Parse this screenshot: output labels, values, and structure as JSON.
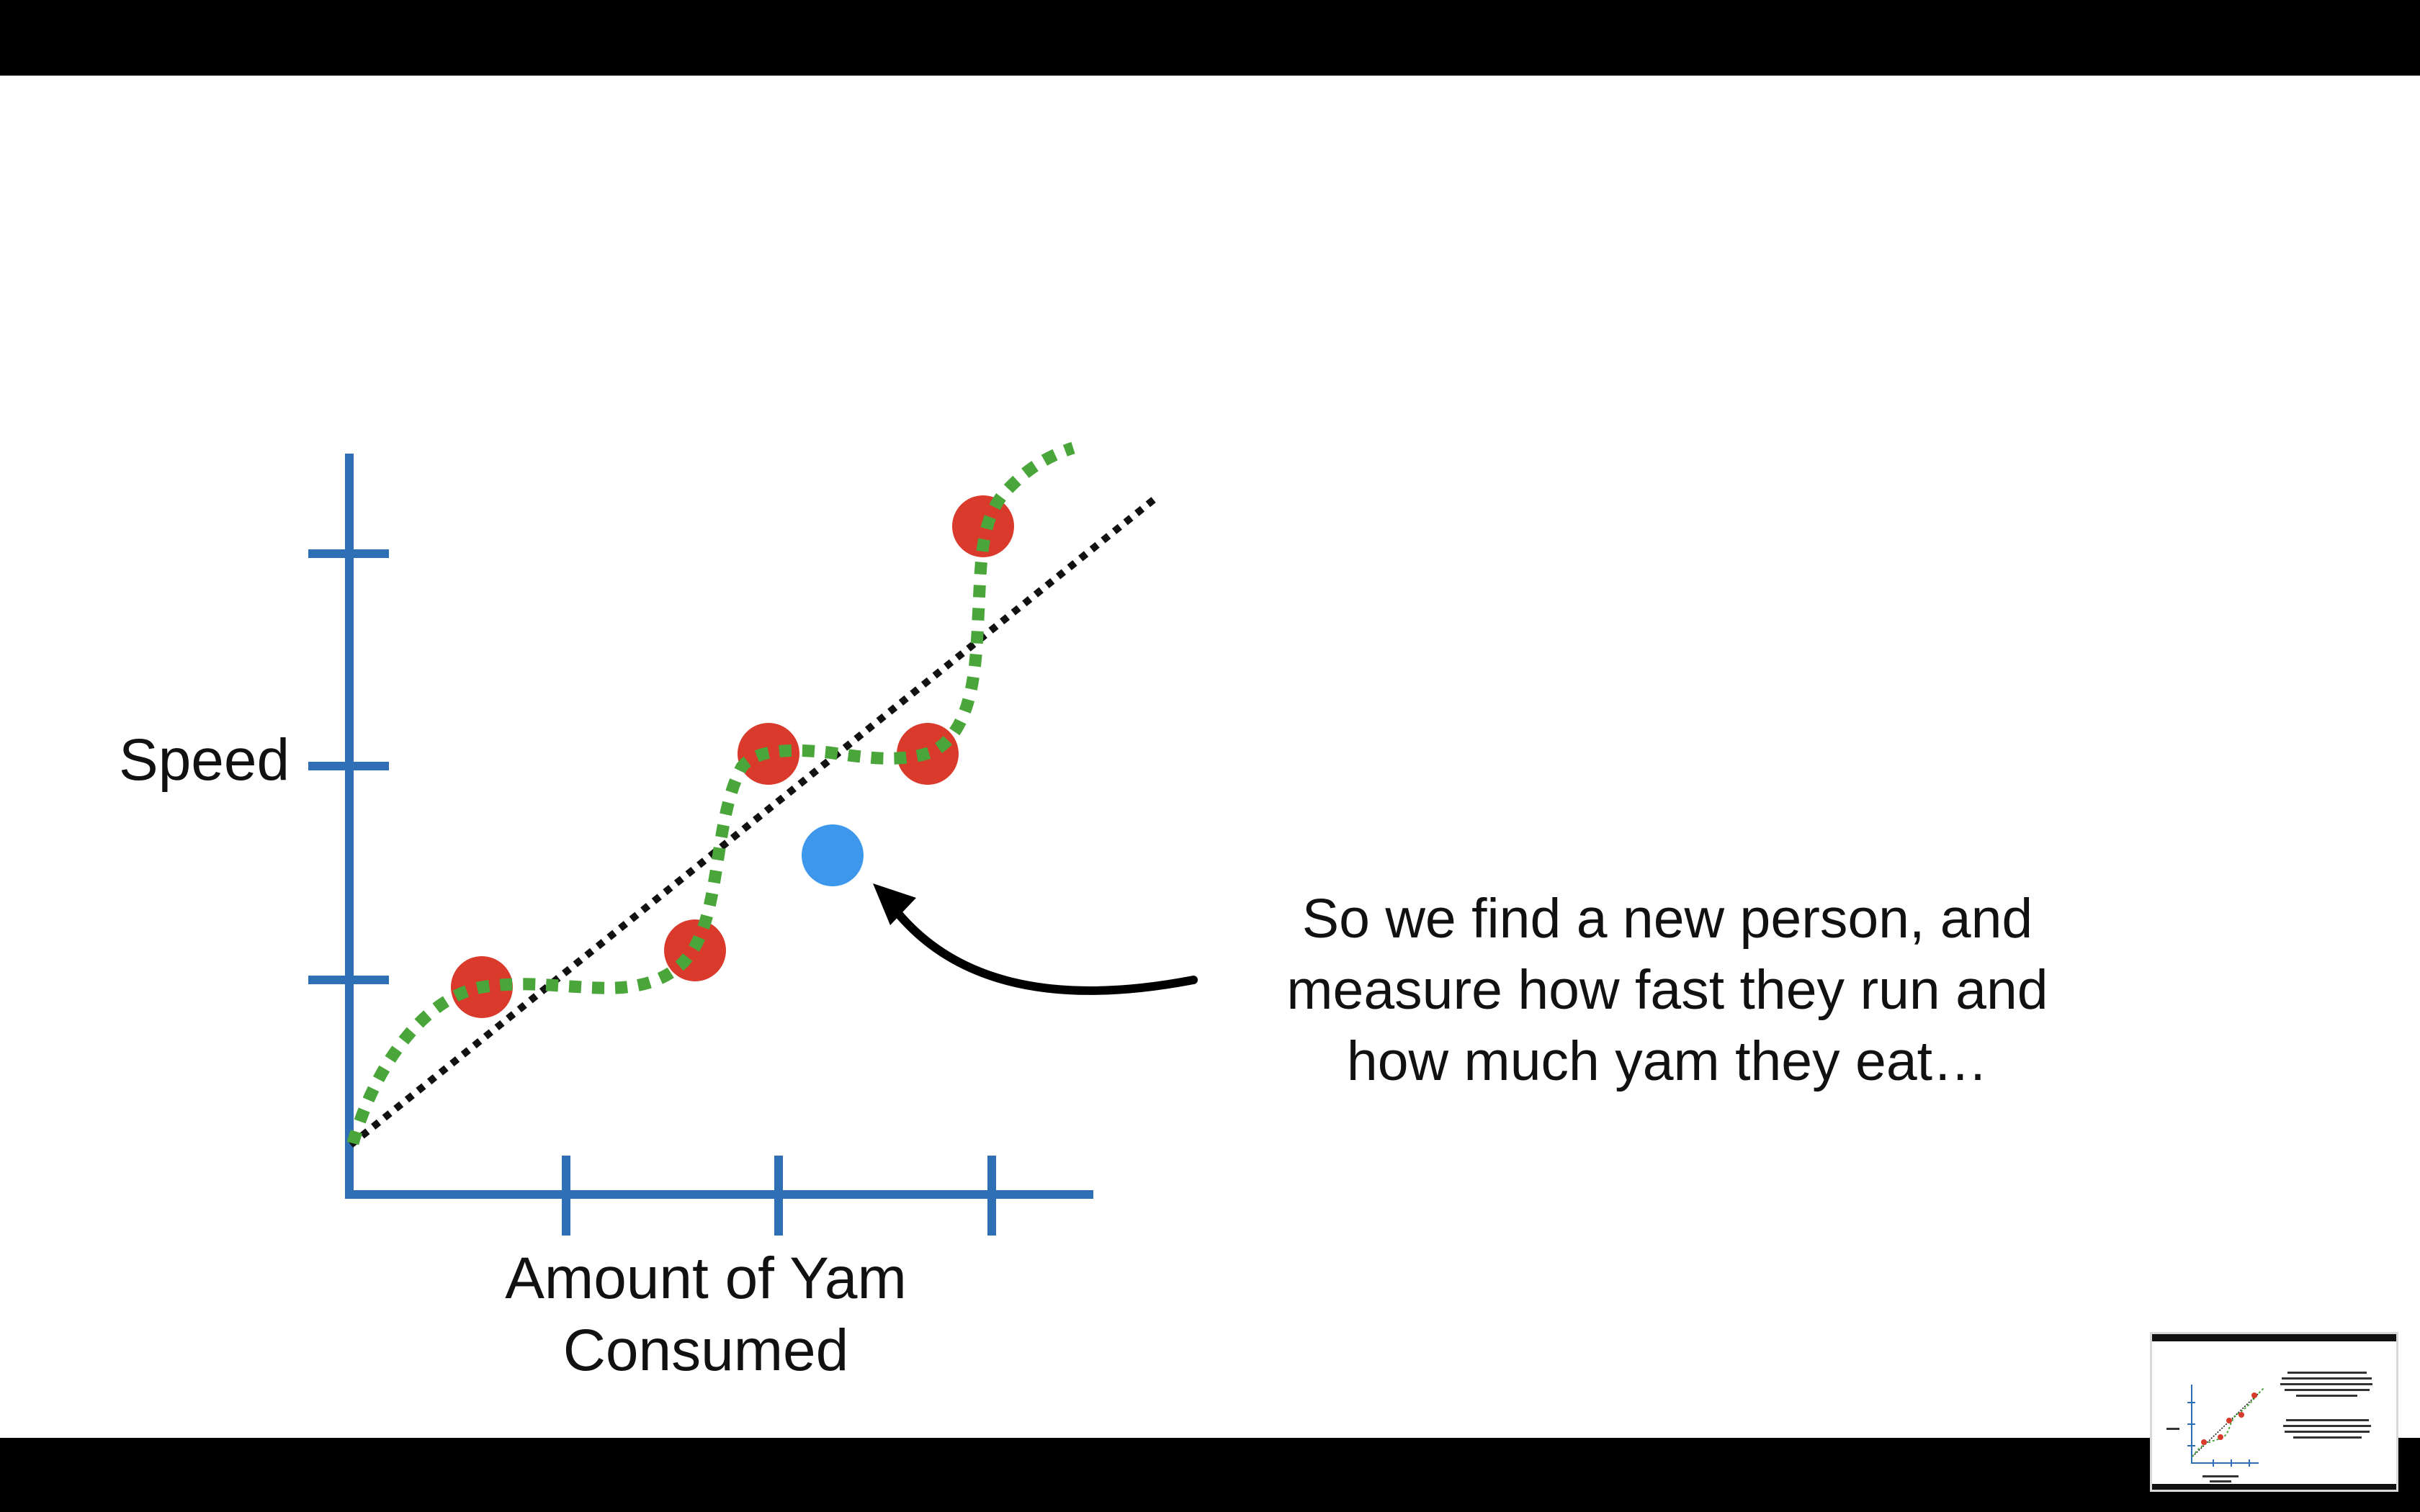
{
  "slide": {
    "y_axis_label": "Speed",
    "x_axis_label_line1": "Amount of Yam",
    "x_axis_label_line2": "Consumed",
    "caption_line1": "So we find a new person, and",
    "caption_line2": "measure how fast they run and",
    "caption_line3": "how much yam they eat…"
  },
  "colors": {
    "axis": "#2f6fb5",
    "training_points": "#d93a2b",
    "new_point": "#3d97ea",
    "green_squiggle": "#4aa63a",
    "black_line": "#111111",
    "top_and_bottom_bars": "#000000"
  },
  "thumbnail": {
    "description_label": "next-slide-preview"
  }
}
